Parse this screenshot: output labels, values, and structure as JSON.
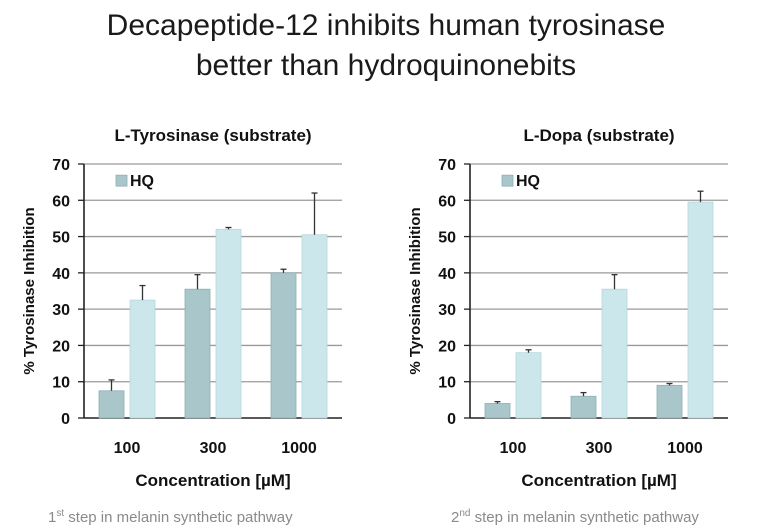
{
  "page_title": {
    "line1": "Decapeptide-12 inhibits human tyrosinase",
    "line2": "better than hydroquinonebits"
  },
  "colors": {
    "hq_bar": "#a9c6ca",
    "decapeptide_bar": "#cbe7ec",
    "gridline": "#9a9a9a",
    "axis": "#222222",
    "error_bar": "#333333",
    "footnote_text": "#8a8a8a"
  },
  "chart_data": [
    {
      "type": "bar",
      "title": "L-Tyrosinase (substrate)",
      "xlabel": "Concentration [µM]",
      "ylabel": "% Tyrosinase Inhibition",
      "categories": [
        "100",
        "300",
        "1000"
      ],
      "ylim": [
        0,
        70
      ],
      "yticks": [
        "0",
        "10",
        "20",
        "30",
        "40",
        "50",
        "60",
        "70"
      ],
      "grid": true,
      "legend_position": "top-left",
      "series": [
        {
          "name": "HQ",
          "values": [
            7.5,
            35.5,
            40
          ],
          "errors": [
            3,
            4,
            1
          ],
          "color": "#a9c6ca"
        },
        {
          "values": [
            32.5,
            52,
            50.5
          ],
          "errors": [
            4,
            0.5,
            11.5
          ],
          "color": "#cbe7ec"
        }
      ],
      "footnote": {
        "number": "1",
        "ordinal": "st",
        "text": " step in melanin synthetic pathway"
      }
    },
    {
      "type": "bar",
      "title": "L-Dopa (substrate)",
      "xlabel": "Concentration [µM]",
      "ylabel": "% Tyrosinase Inhibition",
      "categories": [
        "100",
        "300",
        "1000"
      ],
      "ylim": [
        0,
        70
      ],
      "yticks": [
        "0",
        "10",
        "20",
        "30",
        "40",
        "50",
        "60",
        "70"
      ],
      "grid": true,
      "legend_position": "top-left",
      "series": [
        {
          "name": "HQ",
          "values": [
            4,
            6,
            9
          ],
          "errors": [
            0.5,
            1,
            0.5
          ],
          "color": "#a9c6ca"
        },
        {
          "values": [
            18,
            35.5,
            59.5
          ],
          "errors": [
            0.8,
            4,
            3
          ],
          "color": "#cbe7ec"
        }
      ],
      "footnote": {
        "number": "2",
        "ordinal": "nd",
        "text": " step in melanin synthetic pathway"
      }
    }
  ]
}
